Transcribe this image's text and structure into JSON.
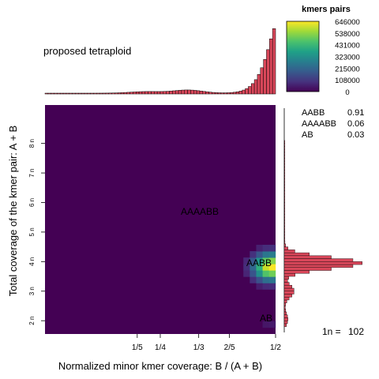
{
  "chart_data": {
    "type": "heatmap",
    "title": "",
    "subtitle": "proposed tetraploid",
    "xlabel": "Normalized minor kmer coverage: B / (A + B)",
    "ylabel": "Total coverage of the kmer pair: A + B",
    "x_ticks": [
      {
        "label": "1/5",
        "value": 0.2
      },
      {
        "label": "1/4",
        "value": 0.25
      },
      {
        "label": "1/3",
        "value": 0.3333
      },
      {
        "label": "2/5",
        "value": 0.4
      },
      {
        "label": "1/2",
        "value": 0.5
      }
    ],
    "y_ticks": [
      {
        "label": "2 n",
        "value": 2
      },
      {
        "label": "3 n",
        "value": 3
      },
      {
        "label": "4 n",
        "value": 4
      },
      {
        "label": "5 n",
        "value": 5
      },
      {
        "label": "6 n",
        "value": 6
      },
      {
        "label": "7 n",
        "value": 7
      },
      {
        "label": "8 n",
        "value": 8
      }
    ],
    "xlim": [
      0.0,
      0.5
    ],
    "ylim": [
      1.55,
      9.3
    ],
    "background_color": "#440154",
    "peak": {
      "x": 0.49,
      "y": 3.82
    },
    "annotations": [
      {
        "text": "AAAABB",
        "x": 0.333,
        "y": 6.0
      },
      {
        "text": "AABB",
        "x": 0.48,
        "y": 4.0
      },
      {
        "text": "AB",
        "x": 0.48,
        "y": 2.0
      }
    ],
    "legend": {
      "title": "kmers pairs",
      "values": [
        646000,
        538000,
        431000,
        323000,
        215000,
        108000,
        0
      ],
      "labels": [
        "646000",
        "538000",
        "431000",
        "323000",
        "215000",
        "108000",
        "0"
      ],
      "colormap": "viridis"
    },
    "proportions": [
      {
        "label": "AABB",
        "value": "0.91"
      },
      {
        "label": "AAAABB",
        "value": "0.06"
      },
      {
        "label": "AB",
        "value": "0.03"
      }
    ],
    "haploid_coverage": {
      "label": "1n = ",
      "value": "102"
    },
    "top_histogram": {
      "fill": "#d9475a",
      "shape": "increasing toward 1/2 with small bump near 1/3"
    },
    "right_histogram": {
      "fill": "#d9475a",
      "peaks_n": [
        4.0,
        3.0,
        2.0
      ]
    }
  }
}
